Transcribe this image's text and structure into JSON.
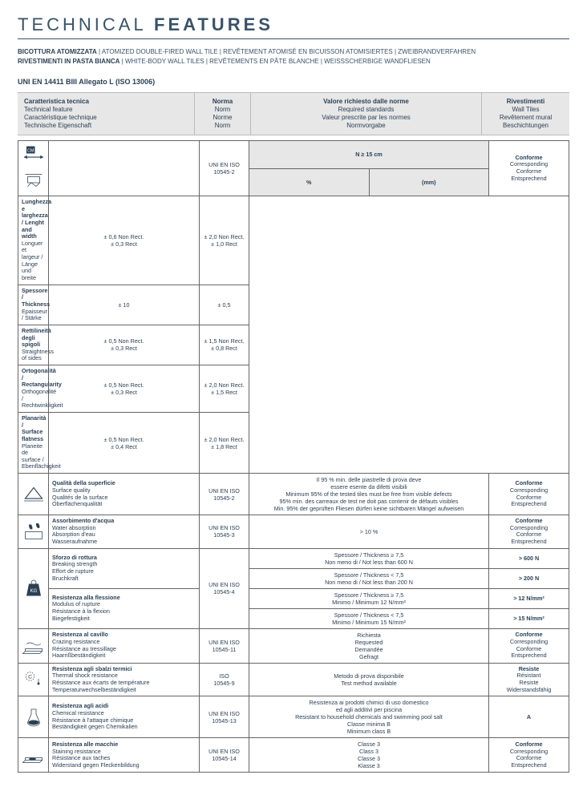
{
  "title": {
    "pre": "TECHNICAL",
    "bold": "FEATURES"
  },
  "subtitle1": {
    "strong": "BICOTTURA ATOMIZZATA",
    "rest": " | ATOMIZED DOUBLE-FIRED WALL TILE | REVÊTEMENT ATOMISÉ EN BICUISSON ATOMISIERTES | ZWEIBRANDVERFAHREN"
  },
  "subtitle2": {
    "strong": "RIVESTIMENTI IN PASTA BIANCA",
    "rest": " | WHITE-BODY WALL TILES | REVÊTEMENTS EN PÂTE BLANCHE | WEISSSCHERBIGE WANDFLIESEN"
  },
  "standard": "UNI EN 14411 BIII Allegato L (ISO 13006)",
  "hdr": {
    "feat": [
      "Caratteristica tecnica",
      "Technical feature",
      "Caractéristique technique",
      "Technische Eigenschaft"
    ],
    "norm": [
      "Norma",
      "Norm",
      "Norme",
      "Norm"
    ],
    "req": [
      "Valore richiesto dalle norme",
      "Required standards",
      "Valeur prescrite par les normes",
      "Normvorgabe"
    ],
    "res": [
      "Rivestimenti",
      "Wall Tiles",
      "Revêtement mural",
      "Beschichtungen"
    ]
  },
  "dimHeader": {
    "span": "N ≥ 15 cm",
    "pct": "%",
    "mm": "(mm)"
  },
  "dimRows": [
    {
      "feat": [
        "Lunghezza e larghezza / Lenght and width",
        "Longuer et largeur / Länge und breite"
      ],
      "pct": "± 0,6 Non Rect.\n± 0,3 Rect",
      "mm": "± 2,0 Non Rect.\n± 1,0 Rect"
    },
    {
      "feat": [
        "Spessore / Thickness",
        "Epaisseur / Stärke"
      ],
      "pct": "± 10",
      "mm": "± 0,5"
    },
    {
      "feat": [
        "Rettilineità degli spigoli",
        "Straightness of sides"
      ],
      "pct": "± 0,5 Non Rect.\n± 0,3 Rect",
      "mm": "± 1,5 Non Rect.\n± 0,8 Rect"
    },
    {
      "feat": [
        "Ortogonalità / Rectangularity",
        "Orthogonalité / Rechtwinkligkeit"
      ],
      "pct": "± 0,5 Non Rect.\n± 0,3 Rect",
      "mm": "± 2,0 Non Rect.\n± 1,5 Rect"
    },
    {
      "feat": [
        "Planarità / Surface flatness",
        "Planeite de surface / Ebenflächigkeit"
      ],
      "pct": "± 0,5 Non Rect.\n± 0,4 Rect",
      "mm": "± 2,0 Non Rect.\n± 1,8 Rect"
    }
  ],
  "dimNorm": "UNI EN ISO\n10545-2",
  "dimRes": [
    "Conforme",
    "Corresponding",
    "Conforme",
    "Entsprechend"
  ],
  "rows": [
    {
      "icon": "surface",
      "feat": [
        "Qualità della superficie",
        "Surface quality",
        "Qualités de la surface",
        "Oberflächenqualität"
      ],
      "norm": "UNI EN ISO\n10545-2",
      "req": "Il 95 % min. delle piastrelle di prova deve\nessere esente da difetti visibili\nMinimum 95% of the tested tiles must be free from visible defects\n95% min. des carreaux de test ne doit pas contenir de défauts visibles\nMin. 95% der geprüften Fliesen dürfen keine sichtbaren Mängel aufweisen",
      "res": [
        "Conforme",
        "Corresponding",
        "Conforme",
        "Entsprechend"
      ]
    },
    {
      "icon": "water",
      "feat": [
        "Assorbimento d'acqua",
        "Water absorption",
        "Absorption d'eau",
        "Wasseraufnahme"
      ],
      "norm": "UNI EN ISO\n10545-3",
      "req": "> 10 %",
      "res": [
        "Conforme",
        "Corresponding",
        "Conforme",
        "Entsprechend"
      ]
    },
    {
      "icon": "kg",
      "group": true,
      "groupNorm": "UNI EN ISO\n10545-4",
      "sub": [
        {
          "feat": [
            "Sforzo di rottura",
            "Breaking strength",
            "Effort de rupture",
            "Bruchkraft"
          ],
          "req": "Spessore / Thickness ≥ 7,5\nNon meno di / Not less than 600 N",
          "res": "> 600 N"
        },
        {
          "feat": null,
          "req": "Spessore / Thickness < 7,5\nNon meno di / Not less than 200 N",
          "res": "> 200 N"
        },
        {
          "feat": [
            "Resistenza alla flessione",
            "Modulus of rupture",
            "Résistance à la flexion",
            "Biegefestigkeit"
          ],
          "req": "Spessore / Thickness ≥ 7,5\nMinimo / Minimum 12 N/mm²",
          "res": "> 12 N/mm²"
        },
        {
          "feat": null,
          "req": "Spessore / Thickness < 7,5\nMinimo / Minimum 15 N/mm²",
          "res": "> 15 N/mm²"
        }
      ]
    },
    {
      "icon": "crazing",
      "feat": [
        "Resistenza al cavillo",
        "Crazing resistance",
        "Résistance au tressillage",
        "Haarrißbeständigkeit"
      ],
      "norm": "UNI EN ISO\n10545-11",
      "req": "Richiesta\nRequested\nDemandée\nGefragt",
      "res": [
        "Conforme",
        "Corresponding",
        "Conforme",
        "Entsprechend"
      ]
    },
    {
      "icon": "thermal",
      "feat": [
        "Resistenza agli sbalzi termici",
        "Thermal shock resistance",
        "Résistance aux écarts de température",
        "Temperaturwechselbeständigkeit"
      ],
      "norm": "ISO\n10545-9",
      "req": "Metodo di prova disponibile\nTest method available",
      "res": [
        "Resiste",
        "Résistant",
        "Resiste",
        "Widerstandsfähig"
      ]
    },
    {
      "icon": "chemical",
      "feat": [
        "Resistenza agli acidi",
        "Chemical resistance",
        "Résistance à l'attaque chimique",
        "Beständigkeit gegen Chemikalien"
      ],
      "norm": "UNI EN ISO\n10545-13",
      "req": "Resistenza ai prodotti chimici di uso domestico\ned agli additivi per piscina\nResistant to household chemicals and swimming pool salt\nClasse minima B\nMinimum class B",
      "res": [
        "A"
      ]
    },
    {
      "icon": "stain",
      "feat": [
        "Resistenza alle macchie",
        "Staining  resistance",
        "Résistance aux taches",
        "Widerstand gegen Fleckenbildung"
      ],
      "norm": "UNI EN ISO\n10545-14",
      "req": "Classe 3\nClass 3\nClasse 3\nKlasse 3",
      "res": [
        "Conforme",
        "Corresponding",
        "Conforme",
        "Entsprechend"
      ]
    }
  ]
}
